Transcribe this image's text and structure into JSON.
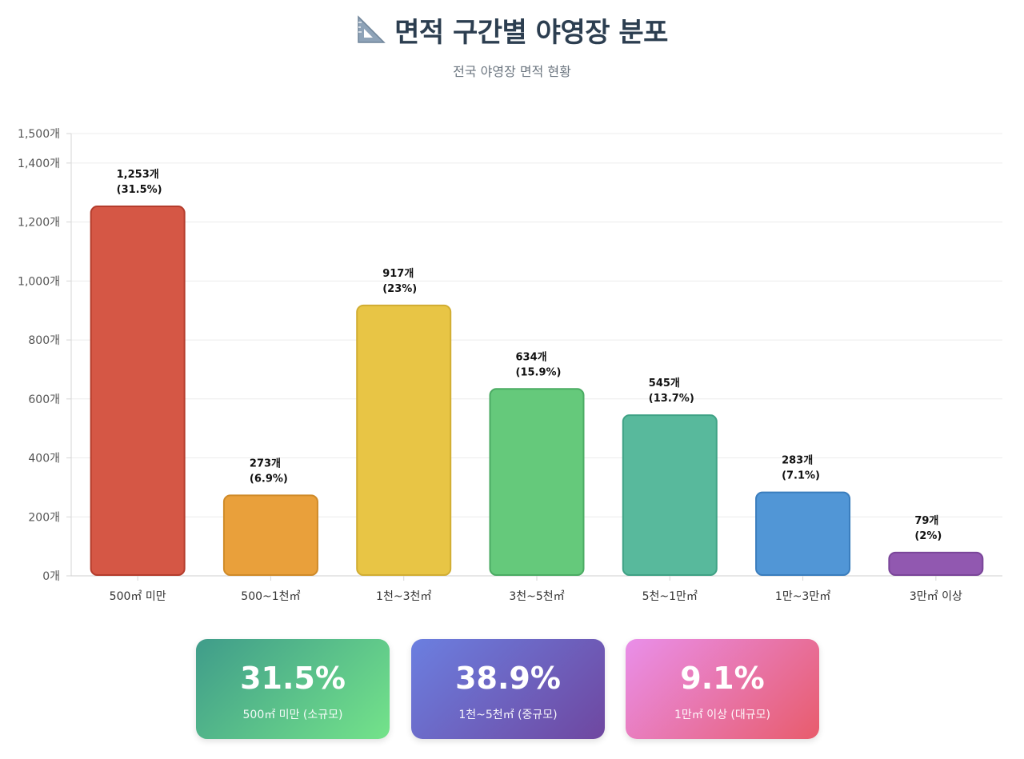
{
  "header": {
    "title": "면적 구간별 야영장 분포",
    "subtitle": "전국 야영장 면적 현황",
    "icon": "triangle-ruler-icon"
  },
  "chart_data": {
    "type": "bar",
    "categories": [
      "500㎡ 미만",
      "500~1천㎡",
      "1천~3천㎡",
      "3천~5천㎡",
      "5천~1만㎡",
      "1만~3만㎡",
      "3만㎡ 이상"
    ],
    "values": [
      1253,
      273,
      917,
      634,
      545,
      283,
      79
    ],
    "data_labels": [
      [
        "1,253개",
        "(31.5%)"
      ],
      [
        "273개",
        "(6.9%)"
      ],
      [
        "917개",
        "(23%)"
      ],
      [
        "634개",
        "(15.9%)"
      ],
      [
        "545개",
        "(13.7%)"
      ],
      [
        "283개",
        "(7.1%)"
      ],
      [
        "79개",
        "(2%)"
      ]
    ],
    "colors": [
      "#d55745",
      "#e9a03b",
      "#e8c545",
      "#65c97b",
      "#58b99c",
      "#5196d6",
      "#9158b0"
    ],
    "border_colors": [
      "#b43c2c",
      "#cf8a28",
      "#d1ad32",
      "#4bab63",
      "#3fa285",
      "#3a7dbd",
      "#7a4599"
    ],
    "ylim": [
      0,
      1500
    ],
    "yticks": [
      0,
      200,
      400,
      600,
      800,
      1000,
      1200,
      1400,
      1500
    ],
    "ytick_labels": [
      "0개",
      "200개",
      "400개",
      "600개",
      "800개",
      "1,000개",
      "1,200개",
      "1,400개",
      "1,500개"
    ],
    "grid": true,
    "title": "",
    "xlabel": "",
    "ylabel": ""
  },
  "cards": [
    {
      "value": "31.5%",
      "label": "500㎡ 미만 (소규모)"
    },
    {
      "value": "38.9%",
      "label": "1천~5천㎡ (중규모)"
    },
    {
      "value": "9.1%",
      "label": "1만㎡ 이상 (대규모)"
    }
  ]
}
